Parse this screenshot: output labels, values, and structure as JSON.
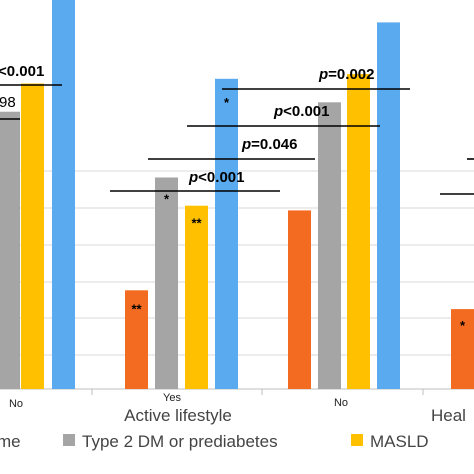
{
  "chart_data": {
    "type": "bar",
    "group_labels": [
      "Active lifestyle",
      "Heal"
    ],
    "x_tick_labels": [
      "No",
      "Yes",
      "No"
    ],
    "series": [
      {
        "name": "me",
        "color": "#a9a9a9"
      },
      {
        "name": "Type 2 DM or prediabetes",
        "color": "#a5a5a5"
      },
      {
        "name": "MASLD",
        "color": "#ffc000"
      }
    ],
    "bar_colors": {
      "orange": "#f26b21",
      "gray": "#a5a5a5",
      "yellow": "#ffc000",
      "blue": "#5aaaf0"
    },
    "bars": [
      {
        "cluster": "No",
        "series": "Type 2 DM or prediabetes",
        "color": "gray",
        "value": 0.59,
        "marker": ""
      },
      {
        "cluster": "No",
        "series": "MASLD",
        "color": "yellow",
        "value": 0.65,
        "marker": ""
      },
      {
        "cluster": "No",
        "series": "blue",
        "color": "blue",
        "value": 0.86,
        "marker": ""
      },
      {
        "cluster": "Yes",
        "series": "orange",
        "color": "orange",
        "value": 0.21,
        "marker": "**"
      },
      {
        "cluster": "Yes",
        "series": "Type 2 DM or prediabetes",
        "color": "gray",
        "value": 0.45,
        "marker": "*"
      },
      {
        "cluster": "Yes",
        "series": "MASLD",
        "color": "yellow",
        "value": 0.39,
        "marker": "**"
      },
      {
        "cluster": "Yes",
        "series": "blue",
        "color": "blue",
        "value": 0.66,
        "marker": "*"
      },
      {
        "cluster": "No",
        "series": "orange",
        "color": "orange",
        "value": 0.38,
        "marker": ""
      },
      {
        "cluster": "No",
        "series": "Type 2 DM or prediabetes",
        "color": "gray",
        "value": 0.61,
        "marker": ""
      },
      {
        "cluster": "No",
        "series": "MASLD",
        "color": "yellow",
        "value": 0.67,
        "marker": ""
      },
      {
        "cluster": "No",
        "series": "blue",
        "color": "blue",
        "value": 0.78,
        "marker": ""
      },
      {
        "cluster": "Heal",
        "series": "orange",
        "color": "orange",
        "value": 0.17,
        "marker": "*"
      }
    ],
    "annotations": [
      {
        "p": "",
        "rest": "<0.001"
      },
      {
        "p": "",
        "rest": "98"
      },
      {
        "p": "p",
        "rest": "=0.002"
      },
      {
        "p": "p",
        "rest": "<0.001"
      },
      {
        "p": "p",
        "rest": "=0.046"
      },
      {
        "p": "p",
        "rest": "<0.001"
      }
    ],
    "gridlines": true
  }
}
